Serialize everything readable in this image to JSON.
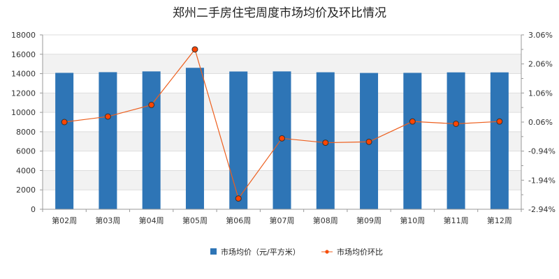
{
  "chart_data": {
    "type": "bar",
    "title": "郑州二手房住宅周度市场均价及环比情况",
    "categories": [
      "第02周",
      "第03周",
      "第04周",
      "第05周",
      "第06周",
      "第07周",
      "第08周",
      "第09周",
      "第10周",
      "第11周",
      "第12周"
    ],
    "series": [
      {
        "name": "市场均价（元/平方米）",
        "type": "bar",
        "axis": "left",
        "color": "#2e75b6",
        "values": [
          14080,
          14150,
          14230,
          14600,
          14220,
          14230,
          14140,
          14070,
          14080,
          14130,
          14130
        ]
      },
      {
        "name": "市场均价环比",
        "type": "line",
        "axis": "right",
        "color": "#ed5f1e",
        "marker_color": "#ff4500",
        "values_percent": [
          0.06,
          0.25,
          0.65,
          2.56,
          -2.57,
          -0.5,
          -0.65,
          -0.62,
          0.08,
          0.0,
          0.08
        ]
      }
    ],
    "y_left": {
      "min": 0,
      "max": 18000,
      "step": 2000
    },
    "y_right": {
      "min": -2.94,
      "max": 3.06,
      "step": 1.0,
      "tick_labels": [
        "-2.94%",
        "-1.94%",
        "-0.94%",
        "0.06%",
        "1.06%",
        "2.06%",
        "3.06%"
      ]
    },
    "legend": {
      "position": "bottom"
    },
    "grid": {
      "horizontal": true,
      "alternating_bands": true
    }
  }
}
